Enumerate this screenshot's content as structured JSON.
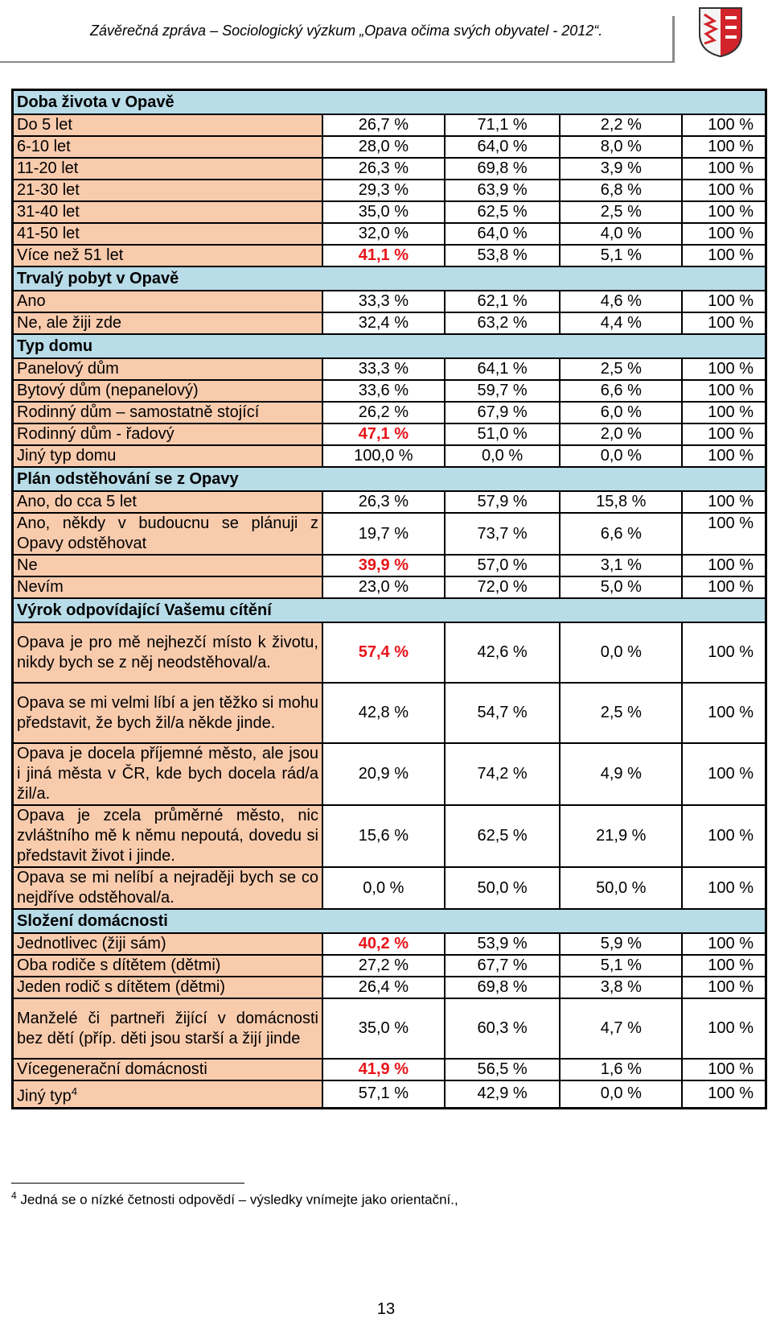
{
  "header": {
    "title": "Závěrečná zpráva – Sociologický výzkum „Opava očima svých obyvatel - 2012“."
  },
  "sections": [
    {
      "title": "Doba života v Opavě",
      "rows": [
        {
          "label": "Do 5 let",
          "c1": "26,7 %",
          "c2": "71,1 %",
          "c3": "2,2 %",
          "c4": "100 %"
        },
        {
          "label": "6-10 let",
          "c1": "28,0 %",
          "c2": "64,0 %",
          "c3": "8,0 %",
          "c4": "100 %"
        },
        {
          "label": "11-20 let",
          "c1": "26,3 %",
          "c2": "69,8 %",
          "c3": "3,9 %",
          "c4": "100 %"
        },
        {
          "label": "21-30 let",
          "c1": "29,3 %",
          "c2": "63,9 %",
          "c3": "6,8 %",
          "c4": "100 %"
        },
        {
          "label": "31-40 let",
          "c1": "35,0 %",
          "c2": "62,5 %",
          "c3": "2,5 %",
          "c4": "100 %"
        },
        {
          "label": "41-50 let",
          "c1": "32,0 %",
          "c2": "64,0 %",
          "c3": "4,0 %",
          "c4": "100 %"
        },
        {
          "label": "Více než 51 let",
          "c1": "41,1 %",
          "c2": "53,8 %",
          "c3": "5,1 %",
          "c4": "100 %"
        }
      ]
    },
    {
      "title": "Trvalý pobyt v Opavě",
      "rows": [
        {
          "label": "Ano",
          "c1": "33,3 %",
          "c2": "62,1 %",
          "c3": "4,6 %",
          "c4": "100 %"
        },
        {
          "label": "Ne, ale žiji zde",
          "c1": "32,4 %",
          "c2": "63,2 %",
          "c3": "4,4 %",
          "c4": "100 %"
        }
      ]
    },
    {
      "title": "Typ domu",
      "rows": [
        {
          "label": "Panelový dům",
          "c1": "33,3 %",
          "c2": "64,1 %",
          "c3": "2,5 %",
          "c4": "100 %"
        },
        {
          "label": "Bytový dům (nepanelový)",
          "c1": "33,6 %",
          "c2": "59,7 %",
          "c3": "6,6 %",
          "c4": "100 %"
        },
        {
          "label": "Rodinný dům – samostatně stojící",
          "c1": "26,2 %",
          "c2": "67,9 %",
          "c3": "6,0 %",
          "c4": "100 %"
        },
        {
          "label": "Rodinný dům - řadový",
          "c1": "47,1 %",
          "c2": "51,0 %",
          "c3": "2,0 %",
          "c4": "100 %"
        },
        {
          "label": "Jiný typ domu",
          "c1": "100,0 %",
          "c2": "0,0 %",
          "c3": "0,0 %",
          "c4": "100 %"
        }
      ]
    },
    {
      "title": "Plán odstěhování se z Opavy",
      "rows": [
        {
          "label": "Ano, do cca 5 let",
          "c1": "26,3 %",
          "c2": "57,9 %",
          "c3": "15,8 %",
          "c4": "100 %"
        },
        {
          "label": "Ano, někdy v budoucnu se plánuji z Opavy odstěhovat",
          "c1": "19,7 %",
          "c2": "73,7 %",
          "c3": "6,6 %",
          "c4": "100 %"
        },
        {
          "label": "Ne",
          "c1": "39,9 %",
          "c2": "57,0 %",
          "c3": "3,1 %",
          "c4": "100 %"
        },
        {
          "label": "Nevím",
          "c1": "23,0 %",
          "c2": "72,0 %",
          "c3": "5,0 %",
          "c4": "100 %"
        }
      ]
    },
    {
      "title": "Výrok odpovídající Vašemu cítění",
      "rows": [
        {
          "label": "Opava je pro mě nejhezčí místo k životu, nikdy bych se z něj neodstěhoval/a.",
          "c1": "57,4 %",
          "c2": "42,6 %",
          "c3": "0,0 %",
          "c4": "100 %"
        },
        {
          "label": "Opava se mi velmi líbí a jen těžko si mohu představit, že bych žil/a někde jinde.",
          "c1": "42,8 %",
          "c2": "54,7 %",
          "c3": "2,5 %",
          "c4": "100 %"
        },
        {
          "label": "Opava je docela příjemné město, ale jsou i jiná města v ČR, kde bych docela rád/a žil/a.",
          "c1": "20,9 %",
          "c2": "74,2 %",
          "c3": "4,9 %",
          "c4": "100 %"
        },
        {
          "label": "Opava je zcela průměrné město, nic zvláštního mě k němu nepoutá, dovedu si představit život i jinde.",
          "c1": "15,6 %",
          "c2": "62,5 %",
          "c3": "21,9 %",
          "c4": "100 %"
        },
        {
          "label": "Opava se mi nelíbí a nejraději bych se co nejdříve odstěhoval/a.",
          "c1": "0,0 %",
          "c2": "50,0 %",
          "c3": "50,0 %",
          "c4": "100 %"
        }
      ]
    },
    {
      "title": "Složení domácnosti",
      "rows": [
        {
          "label": "Jednotlivec (žiji sám)",
          "c1": "40,2 %",
          "c2": "53,9 %",
          "c3": "5,9 %",
          "c4": "100 %"
        },
        {
          "label": "Oba rodiče s dítětem (dětmi)",
          "c1": "27,2 %",
          "c2": "67,7 %",
          "c3": "5,1 %",
          "c4": "100 %"
        },
        {
          "label": "Jeden rodič s dítětem (dětmi)",
          "c1": "26,4 %",
          "c2": "69,8 %",
          "c3": "3,8 %",
          "c4": "100 %"
        },
        {
          "label": "Manželé či partneři žijící v domácnosti bez dětí (příp. děti jsou starší a žijí jinde",
          "c1": "35,0 %",
          "c2": "60,3 %",
          "c3": "4,7 %",
          "c4": "100 %"
        },
        {
          "label": "Vícegenerační domácnosti",
          "c1": "41,9 %",
          "c2": "56,5 %",
          "c3": "1,6 %",
          "c4": "100 %"
        },
        {
          "label": "Jiný typ",
          "label_sup": "4",
          "c1": "57,1 %",
          "c2": "42,9 %",
          "c3": "0,0 %",
          "c4": "100 %"
        }
      ]
    }
  ],
  "footnote": {
    "marker": "4",
    "text": "Jedná se o nízké četnosti odpovědí – výsledky vnímejte jako orientační.,"
  },
  "page_number": "13",
  "colors": {
    "section_header_bg": "#b8dce8",
    "label_bg": "#f9cbad",
    "highlight_text": "#e8141a",
    "crest_red": "#d2232a"
  }
}
